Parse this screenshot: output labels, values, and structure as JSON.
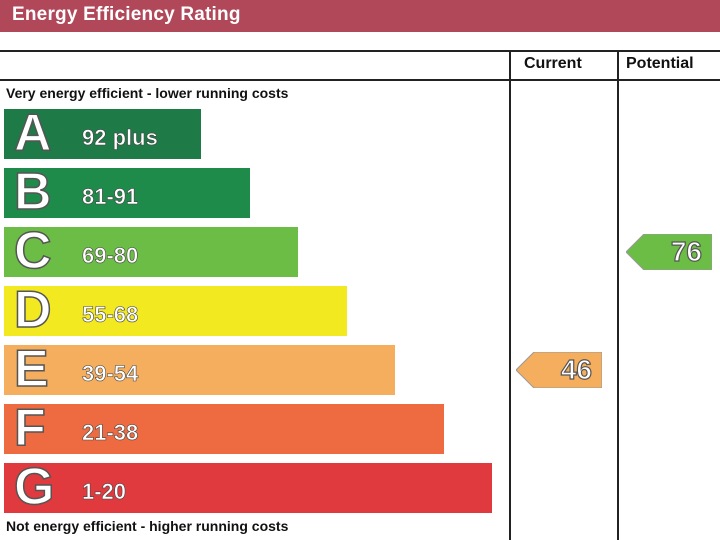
{
  "title": "Energy Efficiency Rating",
  "columns": {
    "current": "Current",
    "potential": "Potential"
  },
  "top_caption": "Very energy efficient - lower running costs",
  "bottom_caption": "Not energy efficient - higher running costs",
  "chart_data": {
    "type": "bar",
    "bands": [
      {
        "letter": "A",
        "range": "92 plus",
        "color": "#1e7a46"
      },
      {
        "letter": "B",
        "range": "81-91",
        "color": "#1f8b4a"
      },
      {
        "letter": "C",
        "range": "69-80",
        "color": "#6cbd45"
      },
      {
        "letter": "D",
        "range": "55-68",
        "color": "#f2e921"
      },
      {
        "letter": "E",
        "range": "39-54",
        "color": "#f4ae5e"
      },
      {
        "letter": "F",
        "range": "21-38",
        "color": "#ee6a40"
      },
      {
        "letter": "G",
        "range": "1-20",
        "color": "#e0393e"
      }
    ],
    "current": {
      "value": 46,
      "band": "E",
      "color": "#f4ae5e"
    },
    "potential": {
      "value": 76,
      "band": "C",
      "color": "#6cbd45"
    }
  }
}
